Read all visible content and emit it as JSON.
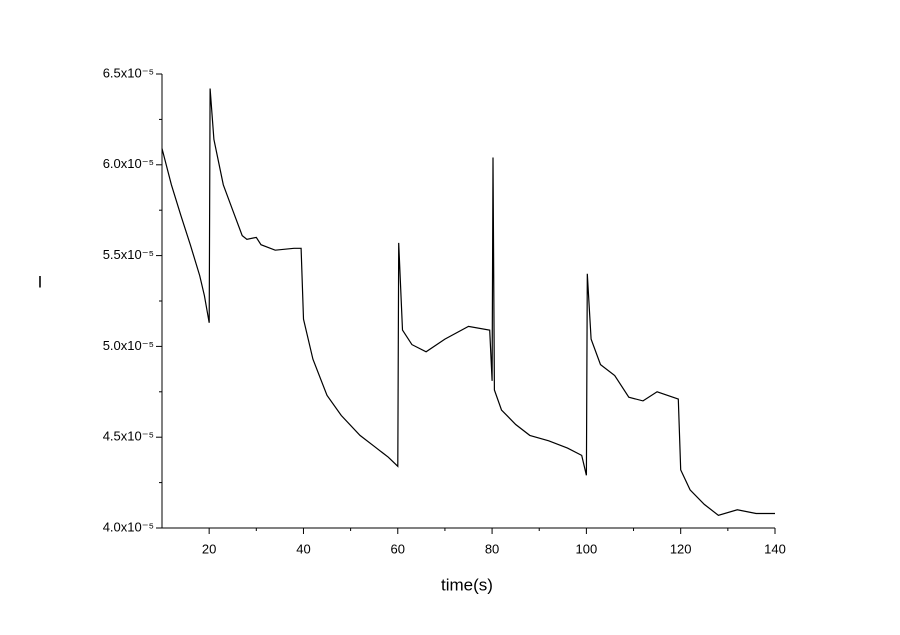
{
  "chart_data": {
    "type": "line",
    "x_label": "time(s)",
    "y_label": "I",
    "xlim": [
      10,
      140
    ],
    "ylim": [
      4e-05,
      6.5e-05
    ],
    "xticks": [
      20,
      40,
      60,
      80,
      100,
      120,
      140
    ],
    "yticks": [
      {
        "value": 4e-05,
        "label": "4.0x10⁻⁵"
      },
      {
        "value": 4.5e-05,
        "label": "4.5x10⁻⁵"
      },
      {
        "value": 5e-05,
        "label": "5.0x10⁻⁵"
      },
      {
        "value": 5.5e-05,
        "label": "5.5x10⁻⁵"
      },
      {
        "value": 6e-05,
        "label": "6.0x10⁻⁵"
      },
      {
        "value": 6.5e-05,
        "label": "6.5x10⁻⁵"
      }
    ],
    "grid": false,
    "series": [
      {
        "color": "#000000",
        "x": [
          10,
          12,
          14,
          16,
          18,
          19,
          20,
          20.2,
          21,
          23,
          25,
          27,
          28,
          30,
          31,
          34,
          38,
          39.5,
          40,
          42,
          45,
          48,
          52,
          55,
          58,
          60,
          60.2,
          61,
          63,
          66,
          70,
          75,
          79.5,
          80,
          80.2,
          80.5,
          82,
          85,
          88,
          92,
          96,
          99,
          100,
          100.2,
          101,
          103,
          106,
          109,
          112,
          115,
          119.5,
          120,
          122,
          125,
          128,
          132,
          136,
          140
        ],
        "values": [
          6.09e-05,
          5.89e-05,
          5.72e-05,
          5.56e-05,
          5.39e-05,
          5.28e-05,
          5.13e-05,
          6.42e-05,
          6.14e-05,
          5.89e-05,
          5.75e-05,
          5.61e-05,
          5.59e-05,
          5.6e-05,
          5.56e-05,
          5.53e-05,
          5.54e-05,
          5.54e-05,
          5.15e-05,
          4.93e-05,
          4.73e-05,
          4.62e-05,
          4.51e-05,
          4.45e-05,
          4.39e-05,
          4.34e-05,
          5.57e-05,
          5.09e-05,
          5.01e-05,
          4.97e-05,
          5.04e-05,
          5.11e-05,
          5.09e-05,
          4.81e-05,
          6.04e-05,
          4.76e-05,
          4.65e-05,
          4.57e-05,
          4.51e-05,
          4.48e-05,
          4.44e-05,
          4.4e-05,
          4.29e-05,
          5.4e-05,
          5.04e-05,
          4.9e-05,
          4.84e-05,
          4.72e-05,
          4.7e-05,
          4.75e-05,
          4.71e-05,
          4.32e-05,
          4.21e-05,
          4.13e-05,
          4.07e-05,
          4.1e-05,
          4.08e-05,
          4.08e-05
        ]
      }
    ]
  }
}
